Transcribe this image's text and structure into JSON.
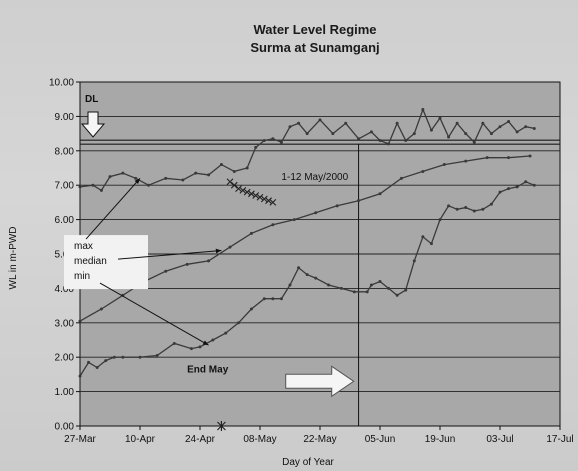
{
  "chart_data": {
    "type": "line",
    "title": "Water Level Regime",
    "subtitle": "Surma at Sunamganj",
    "xlabel": "Day of Year",
    "ylabel": "WL in m-PWD",
    "x_tick_labels": [
      "27-Mar",
      "10-Apr",
      "24-Apr",
      "08-May",
      "22-May",
      "05-Jun",
      "19-Jun",
      "03-Jul",
      "17-Jul"
    ],
    "y_tick_labels": [
      "0.00",
      "1.00",
      "2.00",
      "3.00",
      "4.00",
      "5.00",
      "6.00",
      "7.00",
      "8.00",
      "9.00",
      "10.00"
    ],
    "xlim_days_from_27_mar": [
      0,
      112
    ],
    "ylim": [
      0,
      10
    ],
    "grid": true,
    "danger_level": 8.25,
    "series": [
      {
        "name": "max",
        "x_days": [
          0,
          3,
          5,
          7,
          10,
          13,
          16,
          20,
          24,
          27,
          30,
          33,
          36,
          39,
          41,
          43,
          45,
          47,
          49,
          51,
          53,
          56,
          59,
          62,
          65,
          68,
          70,
          72,
          74,
          76,
          78,
          80,
          82,
          84,
          86,
          88,
          90,
          92,
          94,
          96,
          98,
          100,
          102,
          104,
          106
        ],
        "values": [
          6.95,
          7.0,
          6.85,
          7.25,
          7.35,
          7.2,
          7.0,
          7.2,
          7.15,
          7.35,
          7.3,
          7.6,
          7.4,
          7.5,
          8.1,
          8.3,
          8.35,
          8.25,
          8.7,
          8.8,
          8.5,
          8.9,
          8.5,
          8.8,
          8.35,
          8.55,
          8.3,
          8.2,
          8.8,
          8.3,
          8.5,
          9.2,
          8.6,
          8.95,
          8.4,
          8.8,
          8.5,
          8.25,
          8.8,
          8.5,
          8.7,
          8.85,
          8.55,
          8.7,
          8.65
        ]
      },
      {
        "name": "median",
        "x_days": [
          0,
          5,
          10,
          15,
          20,
          25,
          30,
          35,
          40,
          45,
          50,
          55,
          60,
          65,
          70,
          75,
          80,
          85,
          90,
          95,
          100,
          105
        ],
        "values": [
          3.05,
          3.4,
          3.8,
          4.2,
          4.5,
          4.7,
          4.8,
          5.2,
          5.6,
          5.85,
          6.0,
          6.2,
          6.4,
          6.55,
          6.75,
          7.2,
          7.4,
          7.6,
          7.7,
          7.8,
          7.8,
          7.85
        ]
      },
      {
        "name": "min",
        "x_days": [
          0,
          2,
          4,
          6,
          8,
          10,
          14,
          18,
          22,
          26,
          28,
          31,
          34,
          37,
          40,
          43,
          45,
          47,
          49,
          51,
          53,
          55,
          58,
          61,
          64,
          67,
          68,
          70,
          72,
          74,
          76,
          78,
          80,
          82,
          84,
          86,
          88,
          90,
          92,
          94,
          96,
          98,
          100,
          102,
          104,
          106
        ],
        "values": [
          1.45,
          1.85,
          1.7,
          1.9,
          2.0,
          2.0,
          2.0,
          2.05,
          2.4,
          2.25,
          2.3,
          2.5,
          2.7,
          3.0,
          3.4,
          3.7,
          3.7,
          3.7,
          4.1,
          4.6,
          4.4,
          4.3,
          4.1,
          4.0,
          3.9,
          3.9,
          4.1,
          4.2,
          4.0,
          3.8,
          3.95,
          4.8,
          5.5,
          5.3,
          6.0,
          6.4,
          6.3,
          6.35,
          6.25,
          6.3,
          6.45,
          6.8,
          6.9,
          6.95,
          7.1,
          7.0
        ]
      },
      {
        "name": "1-12 May/2000",
        "x_days": [
          35,
          36,
          37,
          38,
          39,
          40,
          41,
          42,
          43,
          44,
          45
        ],
        "values": [
          7.1,
          7.0,
          6.9,
          6.85,
          6.8,
          6.75,
          6.7,
          6.65,
          6.6,
          6.55,
          6.5
        ]
      }
    ],
    "annotations": {
      "dl": "DL",
      "may_label": "1-12 May/2000",
      "legend_max": "max",
      "legend_median": "median",
      "legend_min": "min",
      "end_may": "End May"
    },
    "markers": {
      "end_may_vertical_x_days": 65,
      "bottom_star_x_days": 33
    }
  },
  "colors": {
    "plot_bg": "#a8a8a8",
    "grid": "#222222",
    "series": "#3a3a3a",
    "dl_line": "#1a1a1a",
    "legend_box": "#f2f2f2",
    "arrow_fill": "#f5f5f5"
  }
}
